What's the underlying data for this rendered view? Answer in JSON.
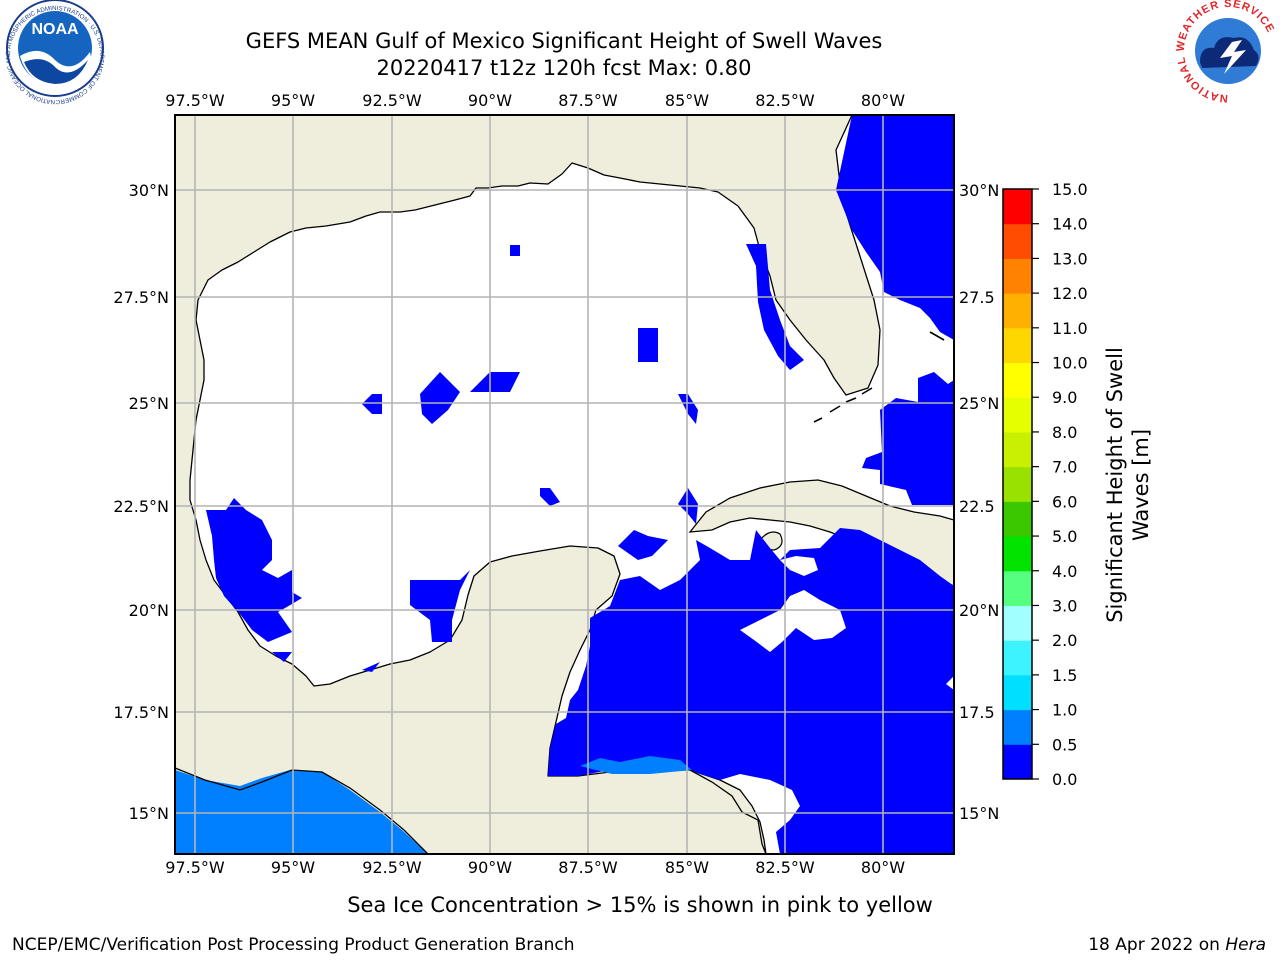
{
  "title": {
    "line1": "GEFS MEAN Gulf of Mexico Significant Height of Swell Waves",
    "line2": "20220417 t12z 120h fcst   Max: 0.80"
  },
  "map": {
    "lon_labels": [
      "97.5°W",
      "95°W",
      "92.5°W",
      "90°W",
      "87.5°W",
      "85°W",
      "82.5°W",
      "80°W"
    ],
    "lat_labels_left": [
      "30°N",
      "27.5°N",
      "25°N",
      "22.5°N",
      "20°N",
      "17.5°N",
      "15°N"
    ],
    "lat_labels_right": [
      "30°N",
      "27.5",
      "25°N",
      "22.5",
      "20°N",
      "17.5",
      "15°N"
    ],
    "colors": {
      "land": "#efeedc",
      "sea_zero": "#ffffff",
      "coast": "#000000",
      "grid": "#b4b4b4"
    }
  },
  "colorbar": {
    "ticks": [
      "15.0",
      "14.0",
      "13.0",
      "12.0",
      "11.0",
      "10.0",
      "9.0",
      "8.0",
      "7.0",
      "6.0",
      "5.0",
      "4.0",
      "3.0",
      "2.0",
      "1.5",
      "1.0",
      "0.5",
      "0.0"
    ],
    "levels": [
      0,
      0.5,
      1.0,
      1.5,
      2.0,
      3.0,
      4.0,
      5.0,
      6.0,
      7.0,
      8.0,
      9.0,
      10.0,
      11.0,
      12.0,
      13.0,
      14.0,
      15.0
    ],
    "colors": [
      "#0000ff",
      "#0080ff",
      "#00dfff",
      "#3cf3ff",
      "#a2ffff",
      "#55ff80",
      "#00e400",
      "#3cc800",
      "#99e100",
      "#c8f000",
      "#e6ff00",
      "#ffff00",
      "#ffd700",
      "#ffb000",
      "#ff8200",
      "#ff4c00",
      "#ff0000"
    ],
    "label_line1": "Significant Height of Swell",
    "label_line2": "Waves [m]"
  },
  "note": "Sea Ice Concentration > 15% is shown in pink to yellow",
  "footer": {
    "left": "NCEP/EMC/Verification Post Processing Product Generation Branch",
    "date": "18 Apr 2022 on ",
    "machine": "Hera"
  },
  "logos": {
    "noaa": {
      "text": "NOAA",
      "ring": "NATIONAL OCEANIC AND ATMOSPHERIC ADMINISTRATION · U.S. DEPARTMENT OF COMMERCE"
    },
    "nws": {
      "ring": "NATIONAL WEATHER SERVICE"
    }
  }
}
